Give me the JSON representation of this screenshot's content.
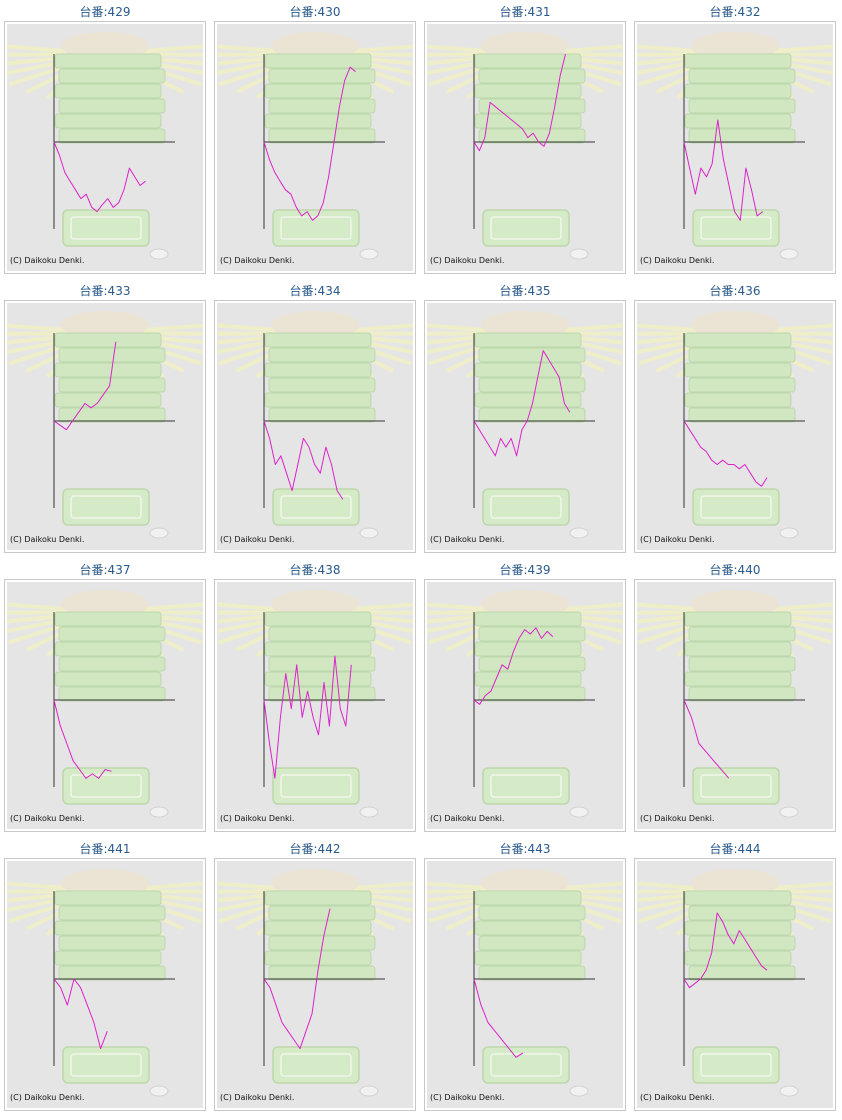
{
  "credit": "(C) Daikoku Denki.",
  "colors": {
    "line": "#dd22cc",
    "panel_background": "#e5e5e5",
    "axis": "#333333",
    "title": "#2a5a8c",
    "decoration": "#cfe8bf"
  },
  "chart_data": [
    {
      "type": "line",
      "title": "台番:429",
      "values": [
        0,
        -0.15,
        -0.35,
        -0.45,
        -0.55,
        -0.65,
        -0.6,
        -0.75,
        -0.8,
        -0.72,
        -0.65,
        -0.75,
        -0.7,
        -0.55,
        -0.3,
        -0.4,
        -0.5,
        -0.45
      ]
    },
    {
      "type": "line",
      "title": "台番:430",
      "values": [
        0,
        -0.2,
        -0.35,
        -0.45,
        -0.55,
        -0.6,
        -0.75,
        -0.85,
        -0.8,
        -0.9,
        -0.85,
        -0.7,
        -0.4,
        0,
        0.4,
        0.7,
        0.85,
        0.8
      ]
    },
    {
      "type": "line",
      "title": "台番:431",
      "values": [
        0,
        -0.1,
        0.05,
        0.45,
        0.4,
        0.35,
        0.3,
        0.25,
        0.2,
        0.15,
        0.05,
        0.1,
        0,
        -0.05,
        0.1,
        0.4,
        0.75,
        1.0
      ]
    },
    {
      "type": "line",
      "title": "台番:432",
      "values": [
        0,
        -0.3,
        -0.6,
        -0.3,
        -0.4,
        -0.25,
        0.25,
        -0.2,
        -0.5,
        -0.8,
        -0.9,
        -0.3,
        -0.55,
        -0.85,
        -0.8
      ]
    },
    {
      "type": "line",
      "title": "台番:433",
      "values": [
        0,
        -0.05,
        -0.1,
        0,
        0.1,
        0.2,
        0.15,
        0.2,
        0.3,
        0.4,
        0.9
      ]
    },
    {
      "type": "line",
      "title": "台番:434",
      "values": [
        0,
        -0.2,
        -0.5,
        -0.4,
        -0.6,
        -0.8,
        -0.5,
        -0.2,
        -0.3,
        -0.5,
        -0.6,
        -0.3,
        -0.5,
        -0.8,
        -0.9
      ]
    },
    {
      "type": "line",
      "title": "台番:435",
      "values": [
        0,
        -0.1,
        -0.2,
        -0.3,
        -0.4,
        -0.2,
        -0.3,
        -0.2,
        -0.4,
        -0.1,
        0,
        0.2,
        0.5,
        0.8,
        0.7,
        0.6,
        0.5,
        0.2,
        0.1
      ]
    },
    {
      "type": "line",
      "title": "台番:436",
      "values": [
        0,
        -0.1,
        -0.2,
        -0.3,
        -0.35,
        -0.45,
        -0.5,
        -0.45,
        -0.5,
        -0.5,
        -0.55,
        -0.5,
        -0.6,
        -0.7,
        -0.75,
        -0.65
      ]
    },
    {
      "type": "line",
      "title": "台番:437",
      "values": [
        0,
        -0.3,
        -0.5,
        -0.7,
        -0.8,
        -0.9,
        -0.85,
        -0.9,
        -0.8,
        -0.82
      ]
    },
    {
      "type": "line",
      "title": "台番:438",
      "values": [
        0,
        -0.5,
        -0.9,
        -0.2,
        0.3,
        -0.1,
        0.4,
        -0.2,
        0.1,
        -0.2,
        -0.4,
        0.2,
        -0.3,
        0.5,
        -0.1,
        -0.3,
        0.4
      ]
    },
    {
      "type": "line",
      "title": "台番:439",
      "values": [
        0,
        -0.05,
        0.05,
        0.1,
        0.25,
        0.4,
        0.35,
        0.55,
        0.7,
        0.8,
        0.75,
        0.82,
        0.7,
        0.78,
        0.72
      ]
    },
    {
      "type": "line",
      "title": "台番:440",
      "values": [
        0,
        -0.2,
        -0.5,
        -0.6,
        -0.7,
        -0.8,
        -0.9
      ]
    },
    {
      "type": "line",
      "title": "台番:441",
      "values": [
        0,
        -0.1,
        -0.3,
        0,
        -0.1,
        -0.3,
        -0.5,
        -0.8,
        -0.6
      ]
    },
    {
      "type": "line",
      "title": "台番:442",
      "values": [
        0,
        -0.1,
        -0.3,
        -0.5,
        -0.6,
        -0.7,
        -0.8,
        -0.6,
        -0.4,
        0.1,
        0.5,
        0.8
      ]
    },
    {
      "type": "line",
      "title": "台番:443",
      "values": [
        0,
        -0.3,
        -0.5,
        -0.6,
        -0.7,
        -0.8,
        -0.9,
        -0.85
      ]
    },
    {
      "type": "line",
      "title": "台番:444",
      "values": [
        0,
        -0.1,
        -0.05,
        0,
        0.1,
        0.3,
        0.75,
        0.65,
        0.5,
        0.4,
        0.55,
        0.45,
        0.35,
        0.25,
        0.15,
        0.1
      ]
    }
  ]
}
